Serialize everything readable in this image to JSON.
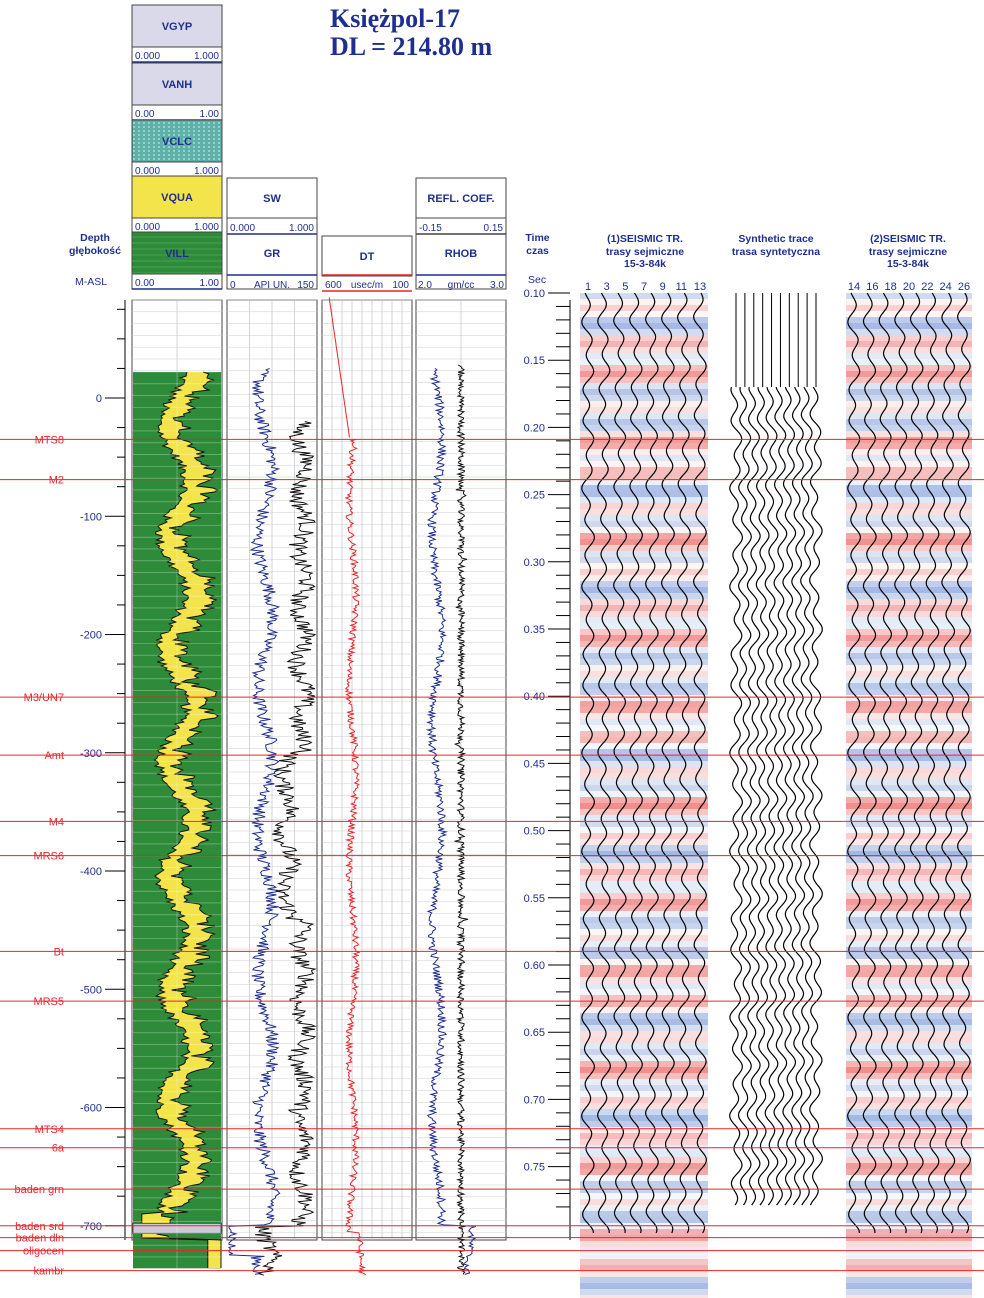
{
  "title": {
    "line1": "Księżpol-17",
    "line2": "DL = 214.80 m"
  },
  "depth_header": {
    "line1": "Depth",
    "line2": "głębokość",
    "unit": "M-ASL"
  },
  "time_header": {
    "line1": "Time",
    "line2": "czas",
    "unit": "Sec"
  },
  "volume_tracks": [
    {
      "name": "VGYP",
      "min": "0.000",
      "max": "1.000",
      "color": "#d9d9ea"
    },
    {
      "name": "VANH",
      "min": "0.00",
      "max": "1.00",
      "color": "#d9d9ea"
    },
    {
      "name": "VCLC",
      "min": "0.000",
      "max": "1.000",
      "color": "#5fb0a8"
    },
    {
      "name": "VQUA",
      "min": "0.000",
      "max": "1.000",
      "color": "#f2e44a"
    },
    {
      "name": "VILL",
      "min": "0.00",
      "max": "1.00",
      "color": "#2e8b3a"
    }
  ],
  "log_headers": {
    "sw": {
      "name": "SW",
      "min": "0.000",
      "max": "1.000"
    },
    "gr": {
      "name": "GR",
      "min": "0",
      "unit": "API UN.",
      "max": "150"
    },
    "dt": {
      "name": "DT",
      "min": "600",
      "unit": "usec/m",
      "max": "100"
    },
    "refl": {
      "name": "REFL. COEF.",
      "min": "-0.15",
      "max": "0.15"
    },
    "rhob": {
      "name": "RHOB",
      "min": "2.0",
      "unit": "gm/cc",
      "max": "3.0"
    }
  },
  "seismic_headers": [
    {
      "line1": "(1)SEISMIC TR.",
      "line2": "trasy sejmiczne",
      "line3": "15-3-84k",
      "traces": [
        "1",
        "3",
        "5",
        "7",
        "9",
        "11",
        "13"
      ]
    },
    {
      "line1": "Synthetic trace",
      "line2": "trasa syntetyczna",
      "line3": "",
      "traces": []
    },
    {
      "line1": "(2)SEISMIC TR.",
      "line2": "trasy sejmiczne",
      "line3": "15-3-84k",
      "traces": [
        "14",
        "16",
        "18",
        "20",
        "22",
        "24",
        "26"
      ]
    }
  ],
  "colors": {
    "blue": "#1f2f8f",
    "red": "#e8262c",
    "green": "#2e8b3a",
    "yellow": "#f2e44a"
  },
  "chart_data": {
    "type": "line",
    "depth_axis": {
      "label": "Depth / głębokość",
      "unit": "M-ASL",
      "ticks": [
        0,
        -100,
        -200,
        -300,
        -400,
        -500,
        -600,
        -700
      ],
      "range": [
        30,
        -750
      ]
    },
    "time_axis": {
      "label": "Time / czas",
      "unit": "Sec",
      "ticks": [
        0.1,
        0.15,
        0.2,
        0.25,
        0.3,
        0.35,
        0.4,
        0.45,
        0.5,
        0.55,
        0.6,
        0.65,
        0.7,
        0.75
      ],
      "range": [
        0.1,
        0.78
      ]
    },
    "horizons": [
      {
        "name": "MTS8",
        "depth": -35
      },
      {
        "name": "M2",
        "depth": -69
      },
      {
        "name": "M3/UN7",
        "depth": -253
      },
      {
        "name": "Amt",
        "depth": -302
      },
      {
        "name": "M4",
        "depth": -358
      },
      {
        "name": "MRS6",
        "depth": -387
      },
      {
        "name": "Bt",
        "depth": -468
      },
      {
        "name": "MRS5",
        "depth": -510
      },
      {
        "name": "MTS4",
        "depth": -618
      },
      {
        "name": "6a",
        "depth": -634
      },
      {
        "name": "baden grn",
        "depth": -669
      },
      {
        "name": "baden srd",
        "depth": -700
      },
      {
        "name": "baden dln",
        "depth": -710
      },
      {
        "name": "oligocen",
        "depth": -721
      },
      {
        "name": "kambr",
        "depth": -738
      }
    ]
  }
}
